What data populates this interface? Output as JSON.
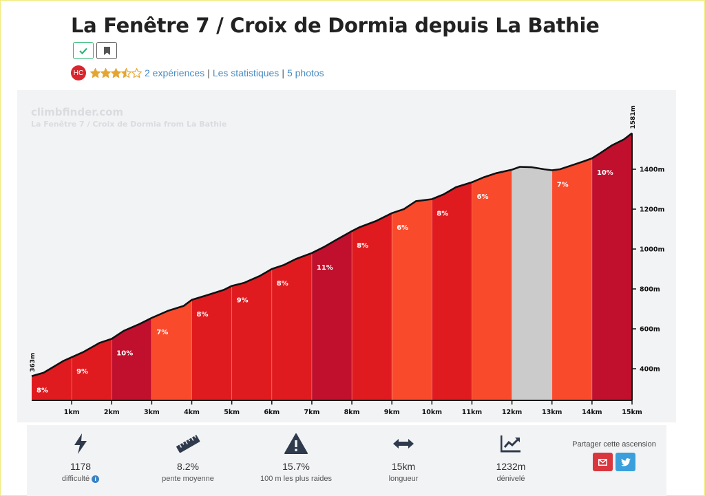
{
  "page": {
    "title": "La Fenêtre 7 / Croix de Dormia depuis La Bathie",
    "category_badge": "HC",
    "rating": 3.5,
    "rating_max": 5,
    "links": {
      "experiences": "2 expériences",
      "statistics": "Les statistiques",
      "photos": "5 photos"
    },
    "separator": "|"
  },
  "chart_data": {
    "type": "area",
    "watermark": "climbfinder.com",
    "subtitle": "La Fenêtre 7 / Croix de Dormia from La Bathie",
    "start_label": "363m",
    "end_label": "1581m",
    "x_unit": "km",
    "y_unit": "m",
    "xlim": [
      0,
      15
    ],
    "ylim": [
      233,
      1600
    ],
    "x_ticks": [
      "1km",
      "2km",
      "3km",
      "4km",
      "5km",
      "6km",
      "7km",
      "8km",
      "9km",
      "10km",
      "11km",
      "12km",
      "13km",
      "14km",
      "15km"
    ],
    "y_ticks": [
      "400m",
      "600m",
      "800m",
      "1000m",
      "1200m",
      "1400m"
    ],
    "y_tick_values": [
      400,
      600,
      800,
      1000,
      1200,
      1400
    ],
    "profile": [
      [
        0,
        363
      ],
      [
        0.3,
        380
      ],
      [
        0.8,
        440
      ],
      [
        1.3,
        485
      ],
      [
        1.7,
        530
      ],
      [
        2.0,
        550
      ],
      [
        2.3,
        590
      ],
      [
        2.7,
        625
      ],
      [
        3.0,
        655
      ],
      [
        3.4,
        690
      ],
      [
        3.8,
        715
      ],
      [
        4.0,
        745
      ],
      [
        4.4,
        770
      ],
      [
        4.8,
        795
      ],
      [
        5.0,
        815
      ],
      [
        5.3,
        830
      ],
      [
        5.7,
        865
      ],
      [
        6.0,
        900
      ],
      [
        6.3,
        920
      ],
      [
        6.6,
        950
      ],
      [
        7.0,
        980
      ],
      [
        7.3,
        1010
      ],
      [
        7.6,
        1045
      ],
      [
        8.0,
        1090
      ],
      [
        8.2,
        1110
      ],
      [
        8.6,
        1140
      ],
      [
        9.0,
        1180
      ],
      [
        9.3,
        1200
      ],
      [
        9.6,
        1240
      ],
      [
        10.0,
        1250
      ],
      [
        10.3,
        1275
      ],
      [
        10.6,
        1310
      ],
      [
        11.0,
        1335
      ],
      [
        11.3,
        1360
      ],
      [
        11.6,
        1380
      ],
      [
        12.0,
        1398
      ],
      [
        12.2,
        1412
      ],
      [
        12.5,
        1410
      ],
      [
        12.8,
        1400
      ],
      [
        13.0,
        1395
      ],
      [
        13.2,
        1400
      ],
      [
        13.5,
        1420
      ],
      [
        13.8,
        1440
      ],
      [
        14.0,
        1455
      ],
      [
        14.2,
        1480
      ],
      [
        14.5,
        1520
      ],
      [
        14.8,
        1550
      ],
      [
        15.0,
        1581
      ]
    ],
    "segments": [
      {
        "km": 1,
        "grade": "8%",
        "color": "#e01b1f"
      },
      {
        "km": 2,
        "grade": "9%",
        "color": "#e01b1f"
      },
      {
        "km": 3,
        "grade": "10%",
        "color": "#c0102d"
      },
      {
        "km": 4,
        "grade": "7%",
        "color": "#fa4a2c"
      },
      {
        "km": 5,
        "grade": "8%",
        "color": "#e01b1f"
      },
      {
        "km": 6,
        "grade": "9%",
        "color": "#e01b1f"
      },
      {
        "km": 7,
        "grade": "8%",
        "color": "#e01b1f"
      },
      {
        "km": 8,
        "grade": "11%",
        "color": "#c0102d"
      },
      {
        "km": 9,
        "grade": "8%",
        "color": "#e01b1f"
      },
      {
        "km": 10,
        "grade": "6%",
        "color": "#fa4a2c"
      },
      {
        "km": 11,
        "grade": "8%",
        "color": "#e01b1f"
      },
      {
        "km": 12,
        "grade": "6%",
        "color": "#fa4a2c"
      },
      {
        "km": 13,
        "grade": "",
        "color": "#cbcbcb"
      },
      {
        "km": 14,
        "grade": "7%",
        "color": "#fa4a2c"
      },
      {
        "km": 15,
        "grade": "10%",
        "color": "#c0102d"
      }
    ]
  },
  "stats": {
    "difficulty": {
      "value": "1178",
      "label": "difficulté",
      "icon": "bolt-icon"
    },
    "avg_gradient": {
      "value": "8.2%",
      "label": "pente moyenne",
      "icon": "ruler-icon"
    },
    "steepest": {
      "value": "15.7%",
      "label": "100 m les plus raides",
      "icon": "warning-icon"
    },
    "length": {
      "value": "15km",
      "label": "longueur",
      "icon": "arrows-h-icon"
    },
    "elevation": {
      "value": "1232m",
      "label": "dénivelé",
      "icon": "chart-line-icon"
    },
    "share": {
      "label": "Partager cette ascension"
    }
  },
  "colors": {
    "link": "#4a8cc2",
    "badge": "#d9262c",
    "star": "#e6a532",
    "mail": "#d9363e",
    "twitter": "#3b9fdb",
    "check": "#2bb673"
  }
}
